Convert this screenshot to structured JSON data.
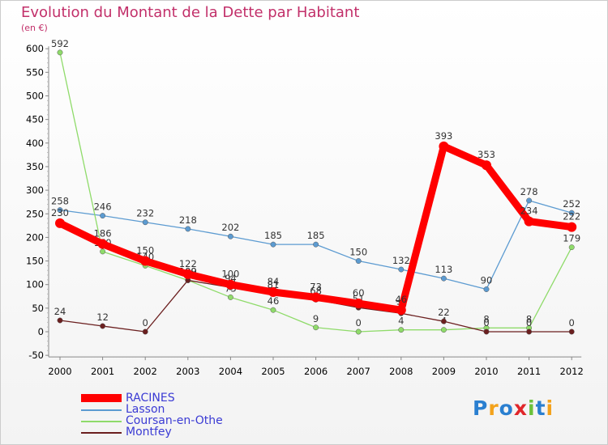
{
  "chart_data": {
    "type": "line",
    "title": "Evolution du Montant de la Dette par Habitant",
    "subtitle": "(en €)",
    "x": [
      "2000",
      "2001",
      "2002",
      "2003",
      "2004",
      "2005",
      "2006",
      "2007",
      "2008",
      "2009",
      "2010",
      "2011",
      "2012"
    ],
    "ylim": [
      -50,
      600
    ],
    "yticks": [
      -50,
      0,
      50,
      100,
      150,
      200,
      250,
      300,
      350,
      400,
      450,
      500,
      550,
      600
    ],
    "grid": false,
    "legend_position": "bottom-left",
    "series": [
      {
        "name": "Lasson",
        "color": "#5c9bd1",
        "values": [
          258,
          246,
          232,
          218,
          202,
          185,
          185,
          150,
          132,
          113,
          90,
          278,
          252
        ]
      },
      {
        "name": "Coursan-en-Othe",
        "color": "#8fdb6a",
        "values": [
          592,
          170,
          140,
          109,
          73,
          46,
          9,
          0,
          4,
          4,
          8,
          8,
          179
        ]
      },
      {
        "name": "Montfey",
        "color": "#6b1f1f",
        "values": [
          24,
          12,
          0,
          109,
          94,
          81,
          68,
          51,
          39,
          22,
          0,
          0,
          0
        ]
      },
      {
        "name": "RACINES",
        "color": "#ff0000",
        "values": [
          230,
          186,
          150,
          122,
          100,
          84,
          73,
          60,
          46,
          393,
          353,
          234,
          222
        ]
      }
    ]
  },
  "legend": {
    "items": [
      {
        "label": "RACINES",
        "color": "#ff0000"
      },
      {
        "label": "Lasson",
        "color": "#5c9bd1"
      },
      {
        "label": "Coursan-en-Othe",
        "color": "#8fdb6a"
      },
      {
        "label": "Montfey",
        "color": "#6b1f1f"
      }
    ]
  },
  "logo": {
    "text": "Proxiti"
  }
}
